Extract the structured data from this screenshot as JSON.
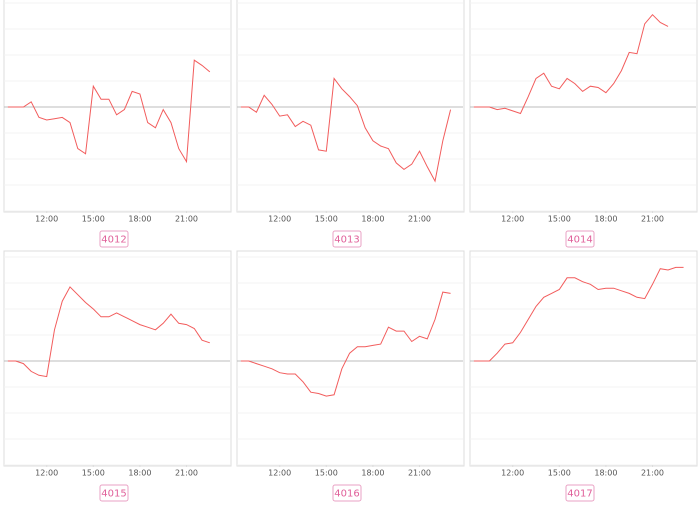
{
  "chart_data": [
    {
      "type": "line",
      "title": "4012",
      "color": "#f25c5c",
      "x": [
        9.5,
        10,
        10.5,
        11,
        11.5,
        12,
        12.5,
        13,
        13.5,
        14,
        14.5,
        15,
        15.5,
        16,
        16.5,
        17,
        17.5,
        18,
        18.5,
        19,
        19.5,
        20,
        20.5,
        21,
        21.5,
        22,
        22.5
      ],
      "values": [
        0,
        0,
        0,
        0.2,
        -0.4,
        -0.5,
        -0.45,
        -0.4,
        -0.6,
        -1.6,
        -1.8,
        0.8,
        0.3,
        0.3,
        -0.3,
        -0.1,
        0.6,
        0.5,
        -0.6,
        -0.8,
        -0.1,
        -0.6,
        -1.6,
        -2.1,
        1.8,
        1.6,
        1.35
      ],
      "xlim": [
        9.25,
        23.8
      ],
      "xticks": [
        {
          "value": 12,
          "label": "12:00"
        },
        {
          "value": 15,
          "label": "15:00"
        },
        {
          "value": 18,
          "label": "18:00"
        },
        {
          "value": 21,
          "label": "21:00"
        }
      ],
      "ylim": [
        -4,
        4
      ],
      "yticks": [
        -4,
        -3,
        -2,
        -1,
        0,
        1,
        2,
        3,
        4
      ],
      "grid": true
    },
    {
      "type": "line",
      "title": "4013",
      "color": "#f25c5c",
      "x": [
        9.5,
        10,
        10.5,
        11,
        11.5,
        12,
        12.5,
        13,
        13.5,
        14,
        14.5,
        15,
        15.5,
        16,
        16.5,
        17,
        17.5,
        18,
        18.5,
        19,
        19.5,
        20,
        20.5,
        21,
        21.5,
        22,
        22.5,
        23
      ],
      "values": [
        0,
        0,
        -0.2,
        0.45,
        0.1,
        -0.35,
        -0.3,
        -0.75,
        -0.55,
        -0.7,
        -1.65,
        -1.7,
        1.1,
        0.7,
        0.4,
        0.05,
        -0.8,
        -1.3,
        -1.5,
        -1.6,
        -2.15,
        -2.4,
        -2.2,
        -1.7,
        -2.3,
        -2.85,
        -1.3,
        -0.1
      ],
      "xlim": [
        9.25,
        23.8
      ],
      "xticks": [
        {
          "value": 12,
          "label": "12:00"
        },
        {
          "value": 15,
          "label": "15:00"
        },
        {
          "value": 18,
          "label": "18:00"
        },
        {
          "value": 21,
          "label": "21:00"
        }
      ],
      "ylim": [
        -4,
        4
      ],
      "yticks": [
        -4,
        -3,
        -2,
        -1,
        0,
        1,
        2,
        3,
        4
      ],
      "grid": true
    },
    {
      "type": "line",
      "title": "4014",
      "color": "#f25c5c",
      "x": [
        9.5,
        10,
        10.5,
        11,
        11.5,
        12,
        12.5,
        13,
        13.5,
        14,
        14.5,
        15,
        15.5,
        16,
        16.5,
        17,
        17.5,
        18,
        18.5,
        19,
        19.5,
        20,
        20.5,
        21,
        21.5,
        22
      ],
      "values": [
        0,
        0,
        0,
        -0.1,
        -0.05,
        -0.15,
        -0.25,
        0.4,
        1.1,
        1.3,
        0.8,
        0.7,
        1.1,
        0.9,
        0.6,
        0.8,
        0.75,
        0.55,
        0.9,
        1.4,
        2.1,
        2.05,
        3.2,
        3.55,
        3.25,
        3.1
      ],
      "xlim": [
        9.25,
        23.8
      ],
      "xticks": [
        {
          "value": 12,
          "label": "12:00"
        },
        {
          "value": 15,
          "label": "15:00"
        },
        {
          "value": 18,
          "label": "18:00"
        },
        {
          "value": 21,
          "label": "21:00"
        }
      ],
      "ylim": [
        -4,
        4
      ],
      "yticks": [
        -4,
        -3,
        -2,
        -1,
        0,
        1,
        2,
        3,
        4
      ],
      "grid": true
    },
    {
      "type": "line",
      "title": "4015",
      "color": "#f25c5c",
      "x": [
        9.5,
        10,
        10.5,
        11,
        11.5,
        12,
        12.5,
        13,
        13.5,
        14,
        14.5,
        15,
        15.5,
        16,
        16.5,
        17,
        17.5,
        18,
        18.5,
        19,
        19.5,
        20,
        20.5,
        21,
        21.5,
        22,
        22.5
      ],
      "values": [
        0,
        0,
        -0.1,
        -0.4,
        -0.55,
        -0.6,
        1.2,
        2.3,
        2.85,
        2.55,
        2.25,
        2.0,
        1.7,
        1.7,
        1.85,
        1.7,
        1.55,
        1.4,
        1.3,
        1.2,
        1.45,
        1.8,
        1.45,
        1.4,
        1.25,
        0.8,
        0.7
      ],
      "xlim": [
        9.25,
        23.8
      ],
      "xticks": [
        {
          "value": 12,
          "label": "12:00"
        },
        {
          "value": 15,
          "label": "15:00"
        },
        {
          "value": 18,
          "label": "18:00"
        },
        {
          "value": 21,
          "label": "21:00"
        }
      ],
      "ylim": [
        -4,
        4
      ],
      "yticks": [
        -4,
        -3,
        -2,
        -1,
        0,
        1,
        2,
        3,
        4
      ],
      "grid": true
    },
    {
      "type": "line",
      "title": "4016",
      "color": "#f25c5c",
      "x": [
        9.5,
        10,
        10.5,
        11,
        11.5,
        12,
        12.5,
        13,
        13.5,
        14,
        14.5,
        15,
        15.5,
        16,
        16.5,
        17,
        17.5,
        18,
        18.5,
        19,
        19.5,
        20,
        20.5,
        21,
        21.5,
        22,
        22.5,
        23
      ],
      "values": [
        0,
        0,
        -0.1,
        -0.2,
        -0.3,
        -0.45,
        -0.5,
        -0.5,
        -0.8,
        -1.2,
        -1.25,
        -1.35,
        -1.3,
        -0.3,
        0.3,
        0.55,
        0.55,
        0.6,
        0.65,
        1.3,
        1.15,
        1.15,
        0.75,
        0.95,
        0.85,
        1.6,
        2.65,
        2.6
      ],
      "xlim": [
        9.25,
        23.8
      ],
      "xticks": [
        {
          "value": 12,
          "label": "12:00"
        },
        {
          "value": 15,
          "label": "15:00"
        },
        {
          "value": 18,
          "label": "18:00"
        },
        {
          "value": 21,
          "label": "21:00"
        }
      ],
      "ylim": [
        -4,
        4
      ],
      "yticks": [
        -4,
        -3,
        -2,
        -1,
        0,
        1,
        2,
        3,
        4
      ],
      "grid": true
    },
    {
      "type": "line",
      "title": "4017",
      "color": "#f25c5c",
      "x": [
        9.5,
        10,
        10.5,
        11,
        11.5,
        12,
        12.5,
        13,
        13.5,
        14,
        14.5,
        15,
        15.5,
        16,
        16.5,
        17,
        17.5,
        18,
        18.5,
        19,
        19.5,
        20,
        20.5,
        21,
        21.5,
        22,
        22.5,
        23
      ],
      "values": [
        0,
        0,
        0,
        0.3,
        0.65,
        0.7,
        1.1,
        1.6,
        2.1,
        2.45,
        2.6,
        2.75,
        3.2,
        3.2,
        3.05,
        2.95,
        2.75,
        2.8,
        2.8,
        2.7,
        2.6,
        2.45,
        2.4,
        2.95,
        3.55,
        3.5,
        3.6,
        3.6
      ],
      "xlim": [
        9.25,
        23.8
      ],
      "xticks": [
        {
          "value": 12,
          "label": "12:00"
        },
        {
          "value": 15,
          "label": "15:00"
        },
        {
          "value": 18,
          "label": "18:00"
        },
        {
          "value": 21,
          "label": "21:00"
        }
      ],
      "ylim": [
        -4,
        4
      ],
      "yticks": [
        -4,
        -3,
        -2,
        -1,
        0,
        1,
        2,
        3,
        4
      ],
      "grid": true
    }
  ]
}
